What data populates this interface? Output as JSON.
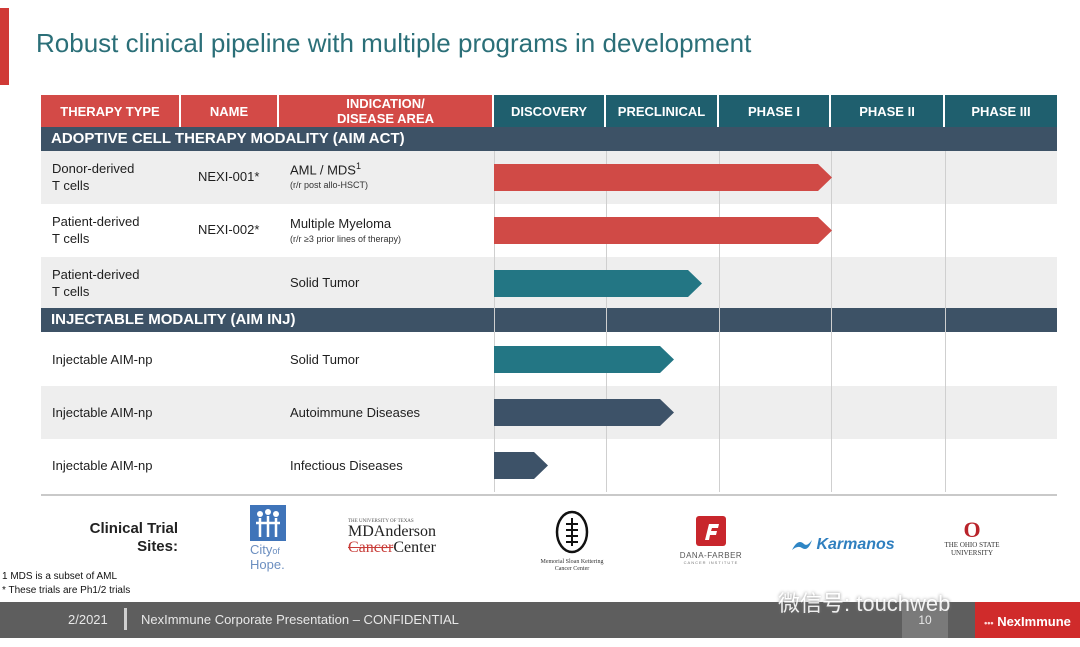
{
  "title": "Robust clinical pipeline with multiple programs in development",
  "headers": {
    "therapy_type": "THERAPY TYPE",
    "name": "NAME",
    "indication_1": "INDICATION/",
    "indication_2": "DISEASE AREA",
    "phases": [
      "DISCOVERY",
      "PRECLINICAL",
      "PHASE I",
      "PHASE II",
      "PHASE III"
    ]
  },
  "sections": [
    "ADOPTIVE CELL THERAPY MODALITY (AIM ACT)",
    "INJECTABLE MODALITY (AIM INJ)"
  ],
  "programs": [
    {
      "therapy_1": "Donor-derived",
      "therapy_2": "T cells",
      "name": "NEXI-001*",
      "indication": "AML / MDS",
      "sup": "1",
      "detail": "(r/r post allo-HSCT)",
      "progress_phases": 3.0,
      "color": "#d04a46"
    },
    {
      "therapy_1": "Patient-derived",
      "therapy_2": "T cells",
      "name": "NEXI-002*",
      "indication": "Multiple Myeloma",
      "sup": "",
      "detail": "(r/r ≥3 prior lines of therapy)",
      "progress_phases": 3.0,
      "color": "#d04a46"
    },
    {
      "therapy_1": "Patient-derived",
      "therapy_2": "T cells",
      "name": "",
      "indication": "Solid Tumor",
      "sup": "",
      "detail": "",
      "progress_phases": 1.85,
      "color": "#237684"
    },
    {
      "therapy_1": "Injectable AIM-np",
      "therapy_2": "",
      "name": "",
      "indication": "Solid Tumor",
      "sup": "",
      "detail": "",
      "progress_phases": 1.6,
      "color": "#237684"
    },
    {
      "therapy_1": "Injectable AIM-np",
      "therapy_2": "",
      "name": "",
      "indication": "Autoimmune Diseases",
      "sup": "",
      "detail": "",
      "progress_phases": 1.6,
      "color": "#3d5268"
    },
    {
      "therapy_1": "Injectable AIM-np",
      "therapy_2": "",
      "name": "",
      "indication": "Infectious Diseases",
      "sup": "",
      "detail": "",
      "progress_phases": 0.48,
      "color": "#3d5268"
    }
  ],
  "sites": {
    "label_1": "Clinical Trial",
    "label_2": "Sites:",
    "city_of_hope_1": "City",
    "city_of_hope_of": "of",
    "city_of_hope_2": "Hope.",
    "md_small": "THE UNIVERSITY OF TEXAS",
    "md_1": "MDAnderson",
    "md_2a": "Cancer",
    "md_2b": "Center",
    "msk_1": "Memorial Sloan Kettering",
    "msk_2": "Cancer Center",
    "dana_1": "DANA-FARBER",
    "dana_2": "CANCER INSTITUTE",
    "karmanos": "Karmanos",
    "osu_1": "THE OHIO STATE",
    "osu_2": "UNIVERSITY"
  },
  "footnotes": {
    "n1": "1  MDS is a subset of AML",
    "n2": "* These trials are Ph1/2 trials"
  },
  "footer": {
    "date": "2/2021",
    "confidential": "NexImmune Corporate Presentation – CONFIDENTIAL",
    "page": "10",
    "brand": "NexImmune"
  },
  "watermark": "微信号: touchweb",
  "colors": {
    "red": "#d34a47",
    "teal": "#1f5f6e",
    "navy": "#3d5266",
    "footer": "#5e5e5e"
  }
}
